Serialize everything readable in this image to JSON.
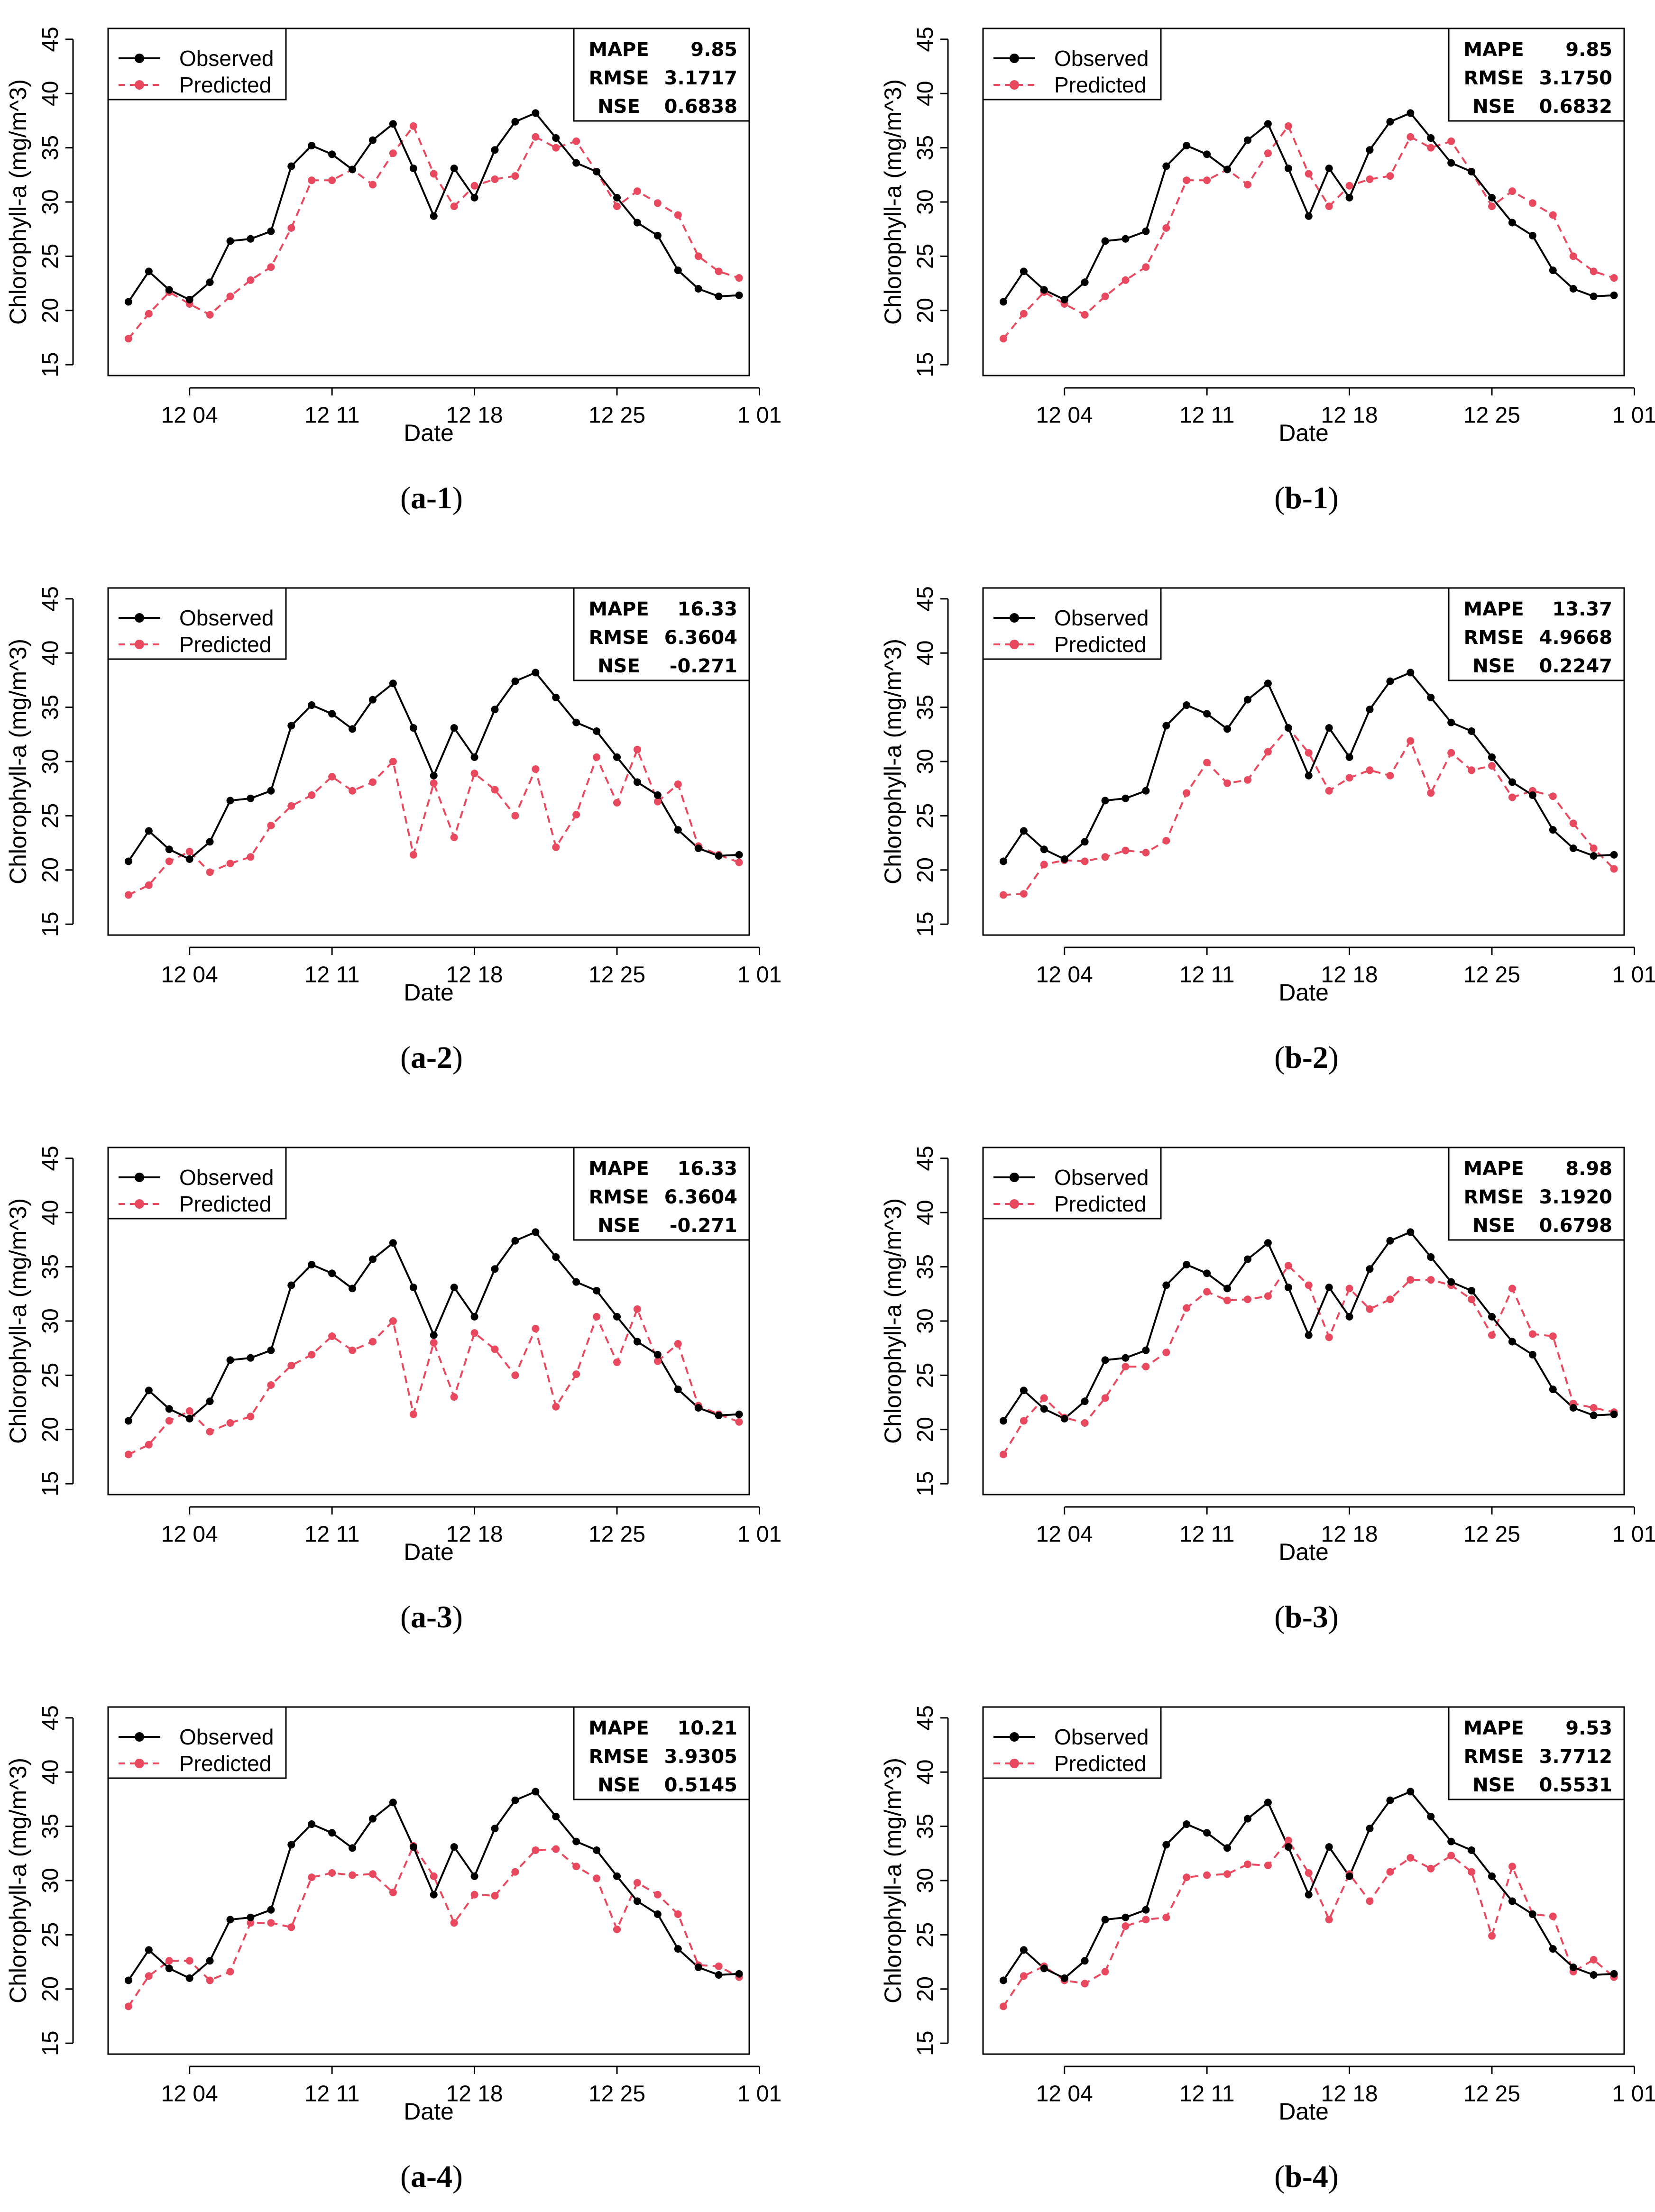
{
  "common": {
    "xlabel": "Date",
    "ylabel": "Chlorophyll-a (mg/m^3)",
    "yticks": [
      15,
      20,
      25,
      30,
      35,
      40,
      45
    ],
    "ylim": [
      14,
      46
    ],
    "xlim": [
      0,
      31.5
    ],
    "xticks": [
      {
        "pos": 4,
        "label": "12 04"
      },
      {
        "pos": 11,
        "label": "12 11"
      },
      {
        "pos": 18,
        "label": "12 18"
      },
      {
        "pos": 25,
        "label": "12 25"
      },
      {
        "pos": 32,
        "label": "1 01"
      }
    ],
    "legend": {
      "observed": "Observed",
      "predicted": "Predicted"
    },
    "stat_labels": {
      "mape": "MAPE",
      "rmse": "RMSE",
      "nse": "NSE"
    },
    "colors": {
      "observed": "#000000",
      "predicted": "#e8495f"
    },
    "observed": [
      20.8,
      23.6,
      21.9,
      21.0,
      22.6,
      26.4,
      26.6,
      27.3,
      33.3,
      35.2,
      34.4,
      33.0,
      35.7,
      37.2,
      33.1,
      28.7,
      33.1,
      30.4,
      34.8,
      37.4,
      38.2,
      35.9,
      33.6,
      32.8,
      30.4,
      28.1,
      26.9,
      23.7,
      22.0,
      21.3,
      21.4
    ]
  },
  "chart_data": [
    {
      "id": "a1",
      "type": "line",
      "caption_letter": "a",
      "caption_num": "-1",
      "stats": {
        "mape": "9.85",
        "rmse": "3.1717",
        "nse": "0.6838"
      },
      "predicted": [
        17.4,
        19.7,
        21.7,
        20.6,
        19.6,
        21.3,
        22.8,
        24.0,
        27.6,
        32.0,
        32.0,
        33.0,
        31.6,
        34.5,
        37.0,
        32.6,
        29.6,
        31.5,
        32.1,
        32.4,
        36.0,
        35.0,
        35.6,
        32.8,
        29.6,
        31.0,
        29.9,
        28.8,
        25.0,
        23.6,
        23.0
      ]
    },
    {
      "id": "b1",
      "type": "line",
      "caption_letter": "b",
      "caption_num": "-1",
      "stats": {
        "mape": "9.85",
        "rmse": "3.1750",
        "nse": "0.6832"
      },
      "predicted": [
        17.4,
        19.7,
        21.7,
        20.6,
        19.6,
        21.3,
        22.8,
        24.0,
        27.6,
        32.0,
        32.0,
        33.0,
        31.6,
        34.5,
        37.0,
        32.6,
        29.6,
        31.5,
        32.1,
        32.4,
        36.0,
        35.0,
        35.6,
        32.8,
        29.6,
        31.0,
        29.9,
        28.8,
        25.0,
        23.6,
        23.0
      ]
    },
    {
      "id": "a2",
      "type": "line",
      "caption_letter": "a",
      "caption_num": "-2",
      "stats": {
        "mape": "16.33",
        "rmse": "6.3604",
        "nse": "-0.271"
      },
      "predicted": [
        17.7,
        18.6,
        20.8,
        21.7,
        19.8,
        20.6,
        21.2,
        24.1,
        25.9,
        26.9,
        28.6,
        27.3,
        28.1,
        30.0,
        21.4,
        28.0,
        23.0,
        28.9,
        27.4,
        25.0,
        29.3,
        22.1,
        25.1,
        30.4,
        26.2,
        31.1,
        26.3,
        27.9,
        22.2,
        21.4,
        20.7
      ]
    },
    {
      "id": "b2",
      "type": "line",
      "caption_letter": "b",
      "caption_num": "-2",
      "stats": {
        "mape": "13.37",
        "rmse": "4.9668",
        "nse": "0.2247"
      },
      "predicted": [
        17.7,
        17.8,
        20.5,
        20.9,
        20.8,
        21.2,
        21.8,
        21.6,
        22.7,
        27.1,
        29.9,
        28.0,
        28.3,
        30.9,
        33.1,
        30.8,
        27.3,
        28.5,
        29.2,
        28.7,
        31.9,
        27.1,
        30.8,
        29.2,
        29.6,
        26.7,
        27.3,
        26.8,
        24.3,
        22.0,
        20.1
      ]
    },
    {
      "id": "a3",
      "type": "line",
      "caption_letter": "a",
      "caption_num": "-3",
      "stats": {
        "mape": "16.33",
        "rmse": "6.3604",
        "nse": "-0.271"
      },
      "predicted": [
        17.7,
        18.6,
        20.8,
        21.7,
        19.8,
        20.6,
        21.2,
        24.1,
        25.9,
        26.9,
        28.6,
        27.3,
        28.1,
        30.0,
        21.4,
        28.0,
        23.0,
        28.9,
        27.4,
        25.0,
        29.3,
        22.1,
        25.1,
        30.4,
        26.2,
        31.1,
        26.3,
        27.9,
        22.2,
        21.4,
        20.7
      ]
    },
    {
      "id": "b3",
      "type": "line",
      "caption_letter": "b",
      "caption_num": "-3",
      "stats": {
        "mape": "8.98",
        "rmse": "3.1920",
        "nse": "0.6798"
      },
      "predicted": [
        17.7,
        20.8,
        22.9,
        21.1,
        20.6,
        22.9,
        25.8,
        25.8,
        27.1,
        31.2,
        32.7,
        31.9,
        32.0,
        32.3,
        35.1,
        33.3,
        28.5,
        33.0,
        31.1,
        32.0,
        33.8,
        33.8,
        33.3,
        32.0,
        28.7,
        33.0,
        28.8,
        28.6,
        22.4,
        22.0,
        21.6
      ]
    },
    {
      "id": "a4",
      "type": "line",
      "caption_letter": "a",
      "caption_num": "-4",
      "stats": {
        "mape": "10.21",
        "rmse": "3.9305",
        "nse": "0.5145"
      },
      "predicted": [
        18.4,
        21.2,
        22.6,
        22.6,
        20.8,
        21.6,
        26.1,
        26.1,
        25.7,
        30.3,
        30.7,
        30.5,
        30.6,
        28.9,
        33.2,
        30.4,
        26.1,
        28.7,
        28.6,
        30.8,
        32.8,
        32.9,
        31.3,
        30.2,
        25.5,
        29.8,
        28.7,
        26.9,
        22.2,
        22.1,
        21.1
      ]
    },
    {
      "id": "b4",
      "type": "line",
      "caption_letter": "b",
      "caption_num": "-4",
      "stats": {
        "mape": "9.53",
        "rmse": "3.7712",
        "nse": "0.5531"
      },
      "predicted": [
        18.4,
        21.2,
        22.1,
        20.8,
        20.5,
        21.6,
        25.8,
        26.4,
        26.6,
        30.3,
        30.5,
        30.6,
        31.5,
        31.4,
        33.7,
        30.7,
        26.4,
        30.6,
        28.1,
        30.8,
        32.1,
        31.1,
        32.3,
        30.8,
        24.9,
        31.3,
        26.9,
        26.7,
        21.6,
        22.7,
        21.1
      ]
    }
  ]
}
